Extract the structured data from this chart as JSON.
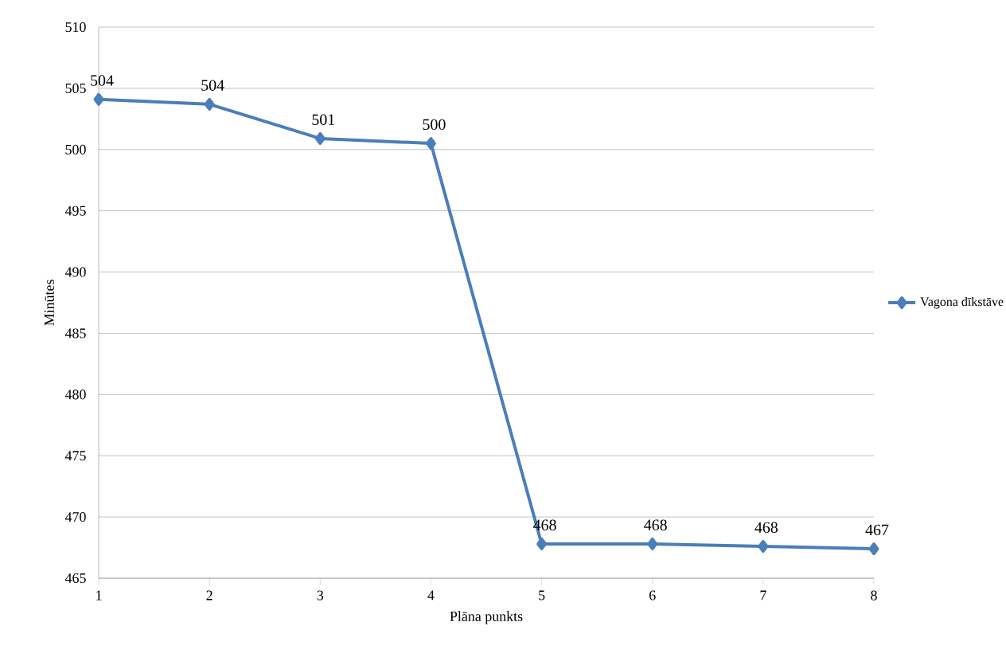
{
  "chart_data": {
    "type": "line",
    "xlabel": "Plāna punkts",
    "ylabel": "Minūtes",
    "x": [
      1,
      2,
      3,
      4,
      5,
      6,
      7,
      8
    ],
    "series": [
      {
        "name": "Vagona dīkstāve",
        "color": "#4a7ebb",
        "values": [
          504.1,
          503.7,
          500.9,
          500.5,
          467.8,
          467.8,
          467.6,
          467.4
        ],
        "value_labels": [
          "504",
          "504",
          "501",
          "500",
          "468",
          "468",
          "468",
          "467"
        ]
      }
    ],
    "xlim": [
      1,
      8
    ],
    "xticks": [
      1,
      2,
      3,
      4,
      5,
      6,
      7,
      8
    ],
    "ylim": [
      465,
      510
    ],
    "yticks": [
      465,
      470,
      475,
      480,
      485,
      490,
      495,
      500,
      505,
      510
    ],
    "grid": "y",
    "legend": "right",
    "marker": "diamond",
    "line_style": "solid"
  }
}
